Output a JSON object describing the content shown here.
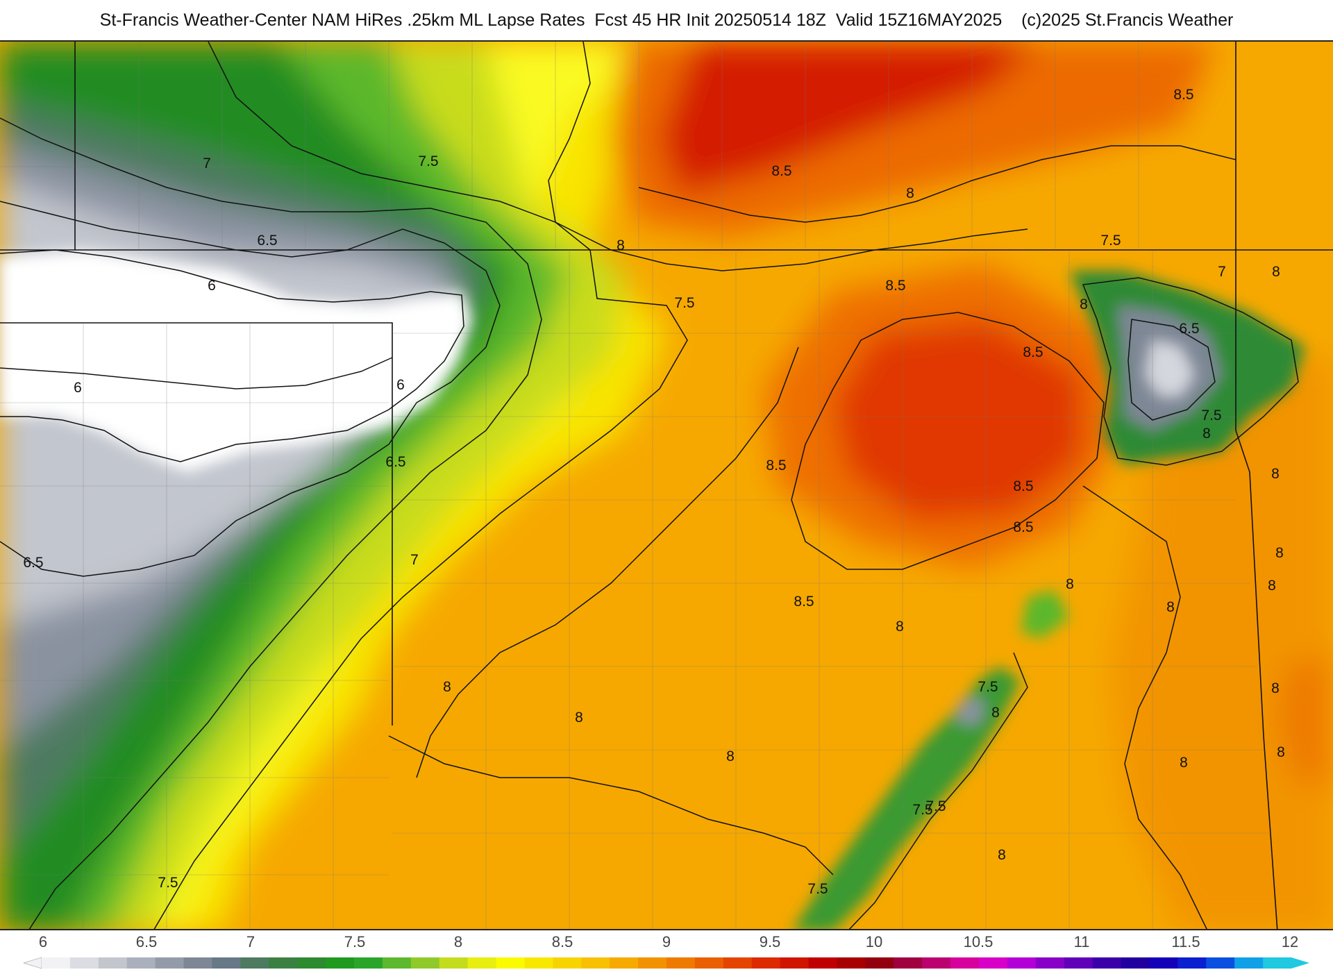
{
  "title": "St-Francis Weather-Center NAM HiRes .25km ML Lapse Rates  Fcst 45 HR Init 20250514 18Z  Valid 15Z16MAY2025    (c)2025 St.Francis Weather",
  "colorbar": {
    "ticks": [
      "6",
      "6.5",
      "7",
      "7.5",
      "8",
      "8.5",
      "9",
      "9.5",
      "10",
      "10.5",
      "11",
      "11.5",
      "12"
    ],
    "colors": [
      "#f2f2f4",
      "#dcdde2",
      "#c4c6ce",
      "#aab0bc",
      "#949ba8",
      "#7e8796",
      "#677886",
      "#4e7a60",
      "#3b8043",
      "#2e8a2e",
      "#1f9a1f",
      "#2aa52a",
      "#5cb82c",
      "#8fca2a",
      "#c3dc1e",
      "#e8ee10",
      "#fafa00",
      "#f8e800",
      "#f7d400",
      "#f7c000",
      "#f6aa00",
      "#f39200",
      "#ef7a00",
      "#ea6000",
      "#e44400",
      "#dd2a00",
      "#d11400",
      "#c00000",
      "#a80000",
      "#920010",
      "#a00040",
      "#bb0070",
      "#d8009c",
      "#d800c8",
      "#b400d8",
      "#8800c8",
      "#6000b8",
      "#3c00a8",
      "#2200a0",
      "#1400b8",
      "#0a20d0",
      "#0a50e0",
      "#10a0e8",
      "#20c8e0"
    ]
  },
  "contour_labels": [
    {
      "text": "7"
    },
    {
      "text": "7.5"
    },
    {
      "text": "6.5"
    },
    {
      "text": "6"
    },
    {
      "text": "6"
    },
    {
      "text": "6"
    },
    {
      "text": "6.5"
    },
    {
      "text": "7"
    },
    {
      "text": "6.5"
    },
    {
      "text": "7.5"
    },
    {
      "text": "8"
    },
    {
      "text": "7.5"
    },
    {
      "text": "8.5"
    },
    {
      "text": "8"
    },
    {
      "text": "8.5"
    },
    {
      "text": "8.5"
    },
    {
      "text": "8.5"
    },
    {
      "text": "8.5"
    },
    {
      "text": "8.5"
    },
    {
      "text": "8.5"
    },
    {
      "text": "7.5"
    },
    {
      "text": "7"
    },
    {
      "text": "6.5"
    },
    {
      "text": "7.5"
    },
    {
      "text": "8"
    },
    {
      "text": "8"
    },
    {
      "text": "8"
    },
    {
      "text": "8"
    },
    {
      "text": "8"
    },
    {
      "text": "8"
    },
    {
      "text": "8"
    },
    {
      "text": "8"
    },
    {
      "text": "8"
    },
    {
      "text": "8"
    },
    {
      "text": "7.5"
    },
    {
      "text": "8"
    },
    {
      "text": "8"
    },
    {
      "text": "8"
    },
    {
      "text": "7.5"
    },
    {
      "text": "8"
    },
    {
      "text": "7.5"
    },
    {
      "text": "8.5"
    },
    {
      "text": "8"
    },
    {
      "text": "8"
    },
    {
      "text": "7.5"
    },
    {
      "text": "8"
    }
  ]
}
